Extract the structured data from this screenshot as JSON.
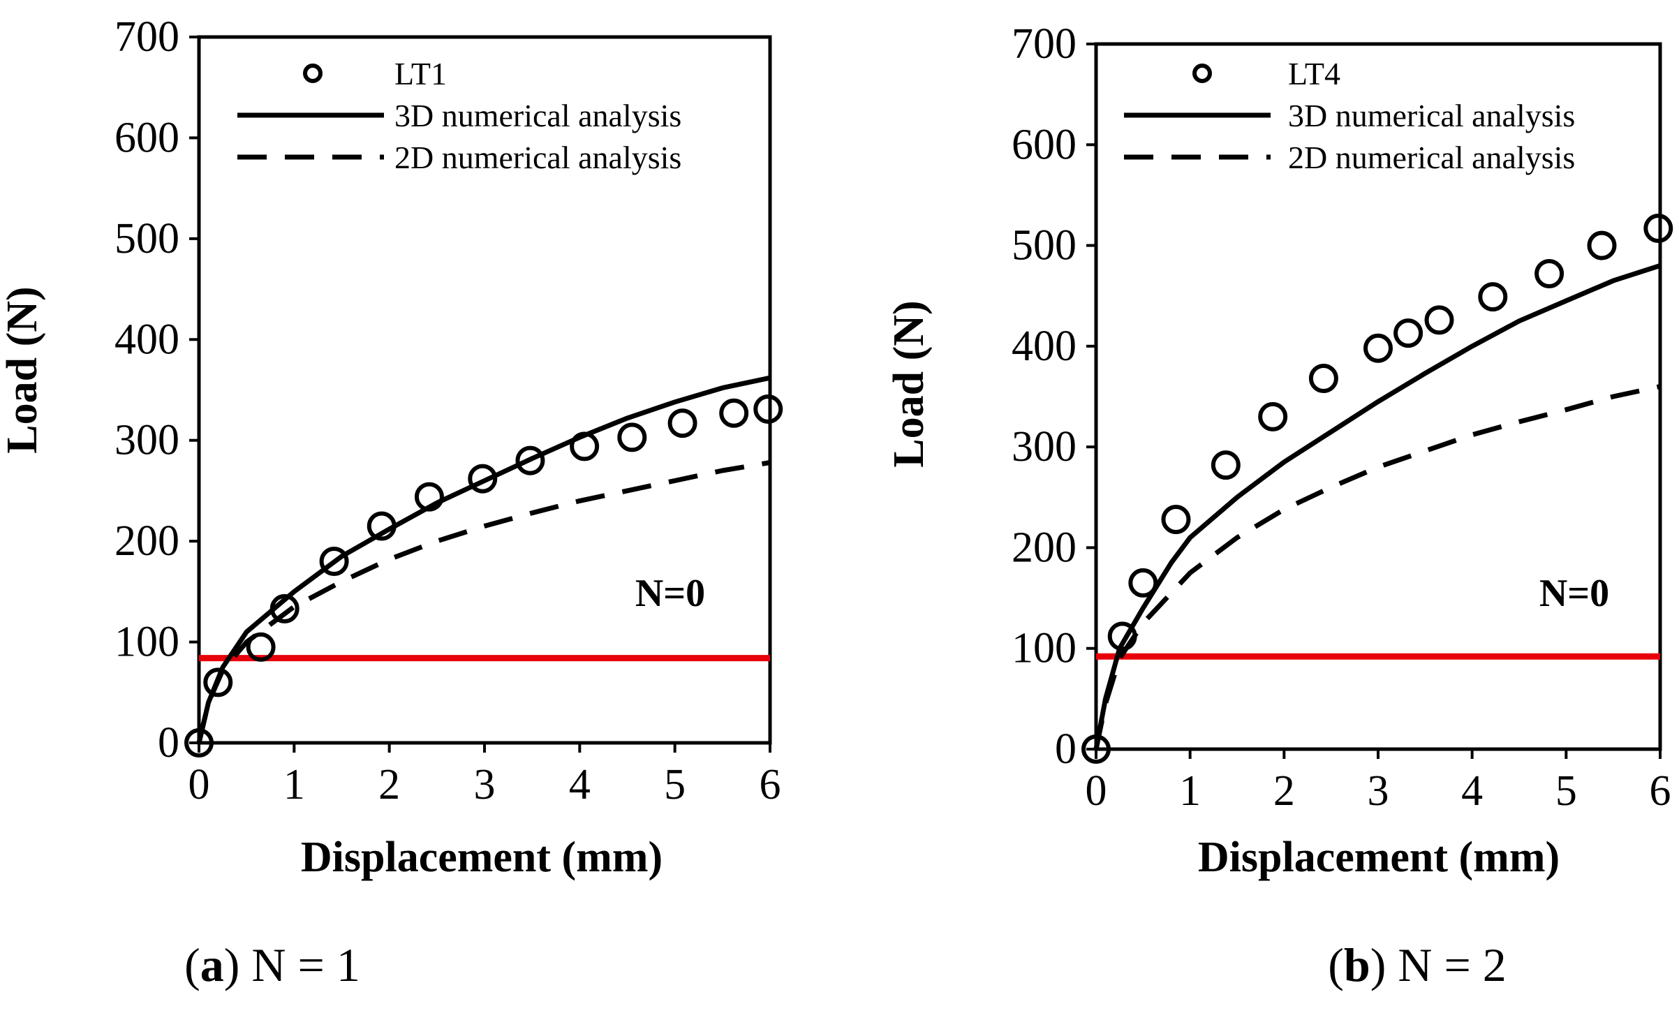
{
  "chart_data": [
    {
      "type": "line",
      "panel": "a",
      "caption": {
        "letter": "a",
        "text": " N = 1"
      },
      "xlabel": "Displacement (mm)",
      "ylabel": "Load (N)",
      "xlim": [
        0,
        6
      ],
      "ylim": [
        0,
        700
      ],
      "xticks": [
        "0",
        "1",
        "2",
        "3",
        "4",
        "5",
        "6"
      ],
      "yticks": [
        "0",
        "100",
        "200",
        "300",
        "400",
        "500",
        "600",
        "700"
      ],
      "legend_position": "top",
      "grid": false,
      "series": [
        {
          "name": "LT1",
          "style": "markers",
          "x": [
            0,
            0.2,
            0.65,
            0.9,
            1.42,
            1.92,
            2.42,
            2.98,
            3.48,
            4.05,
            4.55,
            5.08,
            5.62,
            5.98
          ],
          "y": [
            0,
            60,
            95,
            133,
            180,
            215,
            244,
            262,
            280,
            294,
            303,
            317,
            327,
            331
          ]
        },
        {
          "name": "3D numerical analysis",
          "style": "solid",
          "x": [
            0,
            0.1,
            0.25,
            0.5,
            1,
            1.5,
            2,
            2.5,
            3,
            3.5,
            4,
            4.5,
            5,
            5.5,
            6
          ],
          "y": [
            0,
            40,
            75,
            110,
            150,
            185,
            212,
            238,
            260,
            282,
            303,
            322,
            338,
            352,
            362
          ]
        },
        {
          "name": "2D numerical analysis",
          "style": "dashed",
          "x": [
            0,
            0.1,
            0.25,
            0.5,
            1,
            1.5,
            2,
            2.5,
            3,
            3.5,
            4,
            4.5,
            5,
            5.5,
            6
          ],
          "y": [
            0,
            40,
            72,
            100,
            135,
            160,
            182,
            200,
            215,
            228,
            240,
            250,
            260,
            270,
            278
          ]
        }
      ],
      "threshold": {
        "value": 84,
        "label": "N=0",
        "color": "#e8000b"
      }
    },
    {
      "type": "line",
      "panel": "b",
      "caption": {
        "letter": "b",
        "text": " N = 2"
      },
      "xlabel": "Displacement (mm)",
      "ylabel": "Load (N)",
      "xlim": [
        0,
        6
      ],
      "ylim": [
        0,
        700
      ],
      "xticks": [
        "0",
        "1",
        "2",
        "3",
        "4",
        "5",
        "6"
      ],
      "yticks": [
        "0",
        "100",
        "200",
        "300",
        "400",
        "500",
        "600",
        "700"
      ],
      "legend_position": "top",
      "grid": false,
      "series": [
        {
          "name": "LT4",
          "style": "markers",
          "x": [
            0,
            0.28,
            0.5,
            0.85,
            1.38,
            1.88,
            2.42,
            3,
            3.32,
            3.65,
            4.22,
            4.82,
            5.38,
            5.98
          ],
          "y": [
            0,
            112,
            165,
            228,
            282,
            330,
            368,
            398,
            413,
            426,
            449,
            472,
            500,
            517
          ]
        },
        {
          "name": "3D numerical analysis",
          "style": "solid",
          "x": [
            0,
            0.1,
            0.25,
            0.5,
            0.8,
            1,
            1.5,
            2,
            2.5,
            3,
            3.5,
            4,
            4.5,
            5,
            5.5,
            6
          ],
          "y": [
            0,
            50,
            100,
            140,
            185,
            210,
            250,
            285,
            315,
            345,
            373,
            400,
            425,
            445,
            465,
            480
          ]
        },
        {
          "name": "2D numerical analysis",
          "style": "dashed",
          "x": [
            0,
            0.1,
            0.25,
            0.5,
            1,
            1.5,
            2,
            2.5,
            3,
            3.5,
            4,
            4.5,
            5,
            5.5,
            6
          ],
          "y": [
            0,
            45,
            90,
            125,
            175,
            210,
            238,
            260,
            280,
            296,
            312,
            325,
            337,
            350,
            360
          ]
        }
      ],
      "threshold": {
        "value": 92,
        "label": "N=0",
        "color": "#e8000b"
      }
    }
  ]
}
